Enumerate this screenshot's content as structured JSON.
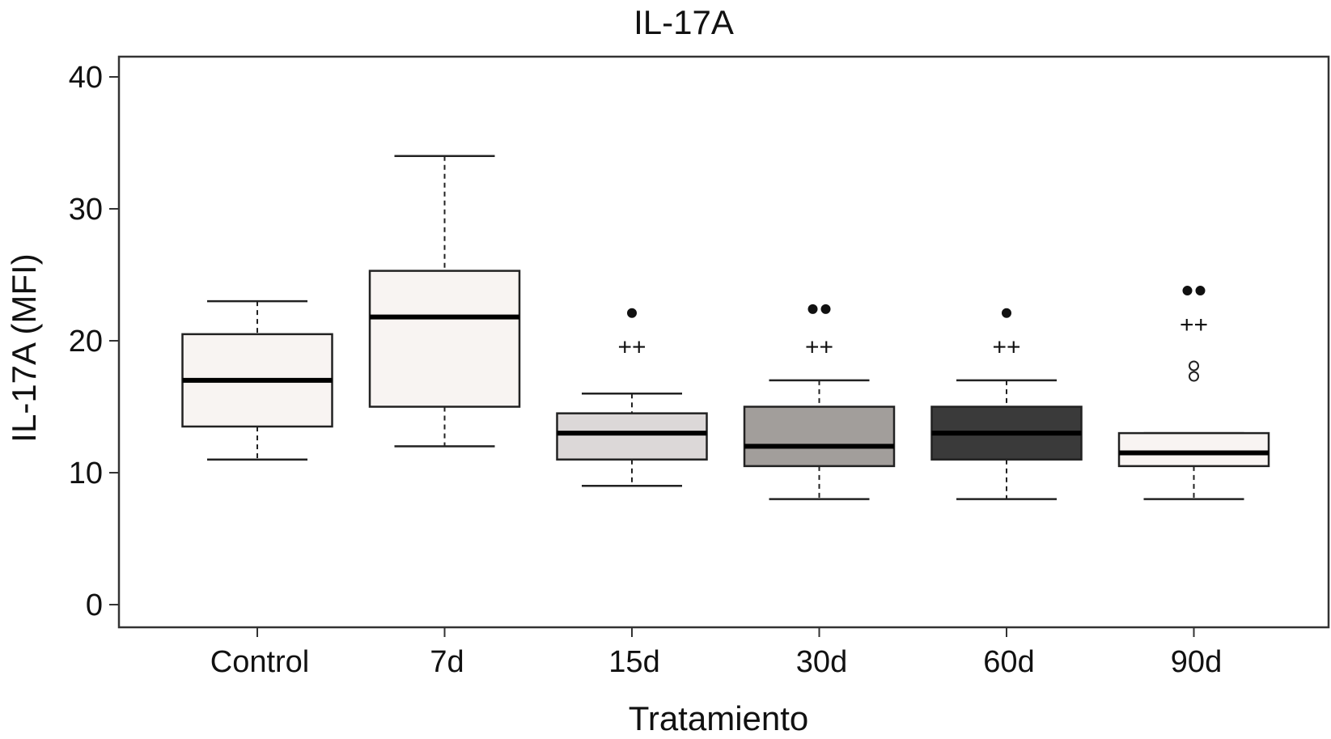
{
  "chart_data": {
    "type": "box",
    "title": "IL-17A",
    "xlabel": "Tratamiento",
    "ylabel": "IL-17A (MFI)",
    "ylim": [
      0,
      40
    ],
    "yticks": [
      0,
      10,
      20,
      30,
      40
    ],
    "grid": false,
    "categories": [
      "Control",
      "7d",
      "15d",
      "30d",
      "60d",
      "90d"
    ],
    "boxes": [
      {
        "category": "Control",
        "whisker_low": 11,
        "q1": 13.5,
        "median": 17,
        "q3": 20.5,
        "whisker_high": 23,
        "fill": "#f8f4f2",
        "outliers": [],
        "significance_dots": 0,
        "significance_plus": ""
      },
      {
        "category": "7d",
        "whisker_low": 12,
        "q1": 15,
        "median": 21.8,
        "q3": 25.3,
        "whisker_high": 34,
        "fill": "#f8f4f2",
        "outliers": [],
        "significance_dots": 0,
        "significance_plus": ""
      },
      {
        "category": "15d",
        "whisker_low": 9,
        "q1": 11,
        "median": 13,
        "q3": 14.5,
        "whisker_high": 16,
        "fill": "#dcd8d8",
        "outliers": [],
        "significance_dots": 1,
        "significance_plus": "++"
      },
      {
        "category": "30d",
        "whisker_low": 8,
        "q1": 10.5,
        "median": 12,
        "q3": 15,
        "whisker_high": 17,
        "fill": "#a29e9b",
        "outliers": [],
        "significance_dots": 2,
        "significance_plus": "++"
      },
      {
        "category": "60d",
        "whisker_low": 8,
        "q1": 11,
        "median": 13,
        "q3": 15,
        "whisker_high": 17,
        "fill": "#3a3a3a",
        "outliers": [],
        "significance_dots": 1,
        "significance_plus": "++"
      },
      {
        "category": "90d",
        "whisker_low": 8,
        "q1": 10.5,
        "median": 11.5,
        "q3": 13,
        "whisker_high": 13,
        "fill": "#f8f4f2",
        "outliers": [
          17.3,
          18.1
        ],
        "significance_dots": 2,
        "significance_plus": "++"
      }
    ]
  }
}
